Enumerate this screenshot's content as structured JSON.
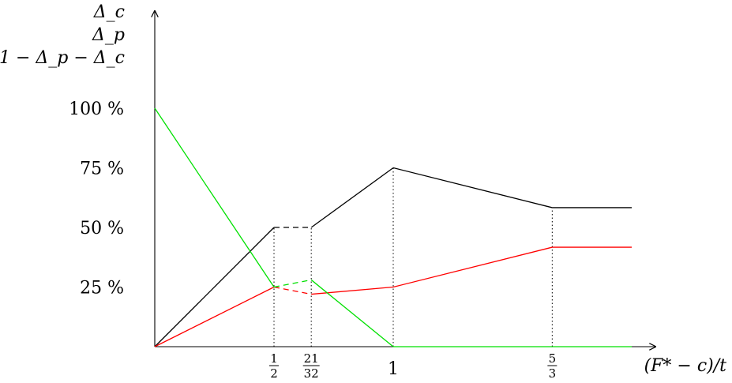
{
  "chart_data": {
    "type": "line",
    "xlabel": "(F* − c)/t",
    "ylabel": "",
    "x_ticks": [
      {
        "x": 0.5,
        "num": "1",
        "den": "2"
      },
      {
        "x": 0.65625,
        "num": "21",
        "den": "32"
      },
      {
        "x": 1,
        "label": "1"
      },
      {
        "x": 1.6667,
        "num": "5",
        "den": "3"
      }
    ],
    "y_ticks": [
      {
        "y": 25,
        "label": "25 %"
      },
      {
        "y": 50,
        "label": "50 %"
      },
      {
        "y": 75,
        "label": "75 %"
      },
      {
        "y": 100,
        "label": "100 %"
      }
    ],
    "xlim": [
      0,
      2.03
    ],
    "ylim": [
      0,
      100
    ],
    "grid": false,
    "legend_position": "top-left",
    "series": [
      {
        "name": "Δ_c",
        "color": "#000000",
        "points": [
          [
            0,
            0
          ],
          [
            0.5,
            50
          ],
          [
            0.65625,
            50
          ],
          [
            1,
            75
          ],
          [
            1.6667,
            58.3
          ],
          [
            2.0,
            58.3
          ]
        ],
        "dashed_segments": [
          1
        ]
      },
      {
        "name": "Δ_p",
        "color": "#ff0000",
        "points": [
          [
            0,
            0
          ],
          [
            0.5,
            25
          ],
          [
            0.65625,
            22
          ],
          [
            1,
            25
          ],
          [
            1.6667,
            41.7
          ],
          [
            2.0,
            41.7
          ]
        ],
        "dashed_segments": [
          1
        ]
      },
      {
        "name": "1 − Δ_p − Δ_c",
        "color": "#00e000",
        "points": [
          [
            0,
            100
          ],
          [
            0.5,
            25
          ],
          [
            0.65625,
            28
          ],
          [
            1,
            0
          ],
          [
            1.6667,
            0
          ],
          [
            2.0,
            0
          ]
        ],
        "dashed_segments": [
          1
        ]
      }
    ]
  }
}
